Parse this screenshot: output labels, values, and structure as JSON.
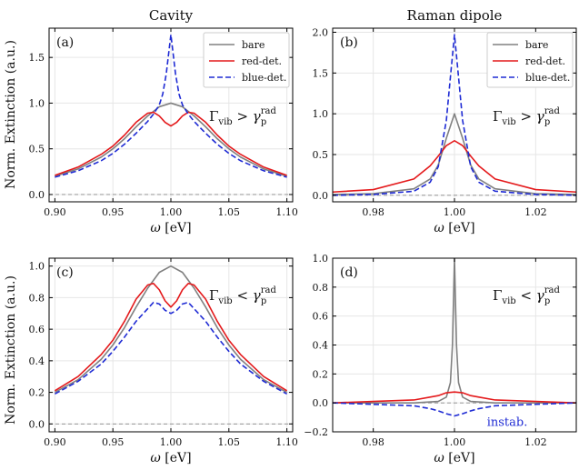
{
  "figure": {
    "column_titles": [
      "Cavity",
      "Raman dipole"
    ],
    "ylabel": "Norm. Extinction (a.u.)",
    "xlabel_symbol": "ω",
    "xlabel_unit": "[eV]"
  },
  "colors": {
    "bare": "#808080",
    "red": "#e41a1c",
    "blue": "#1f2bd4",
    "zero_line": "#888888",
    "grid": "#e6e6e6"
  },
  "chart_data": [
    {
      "type": "line",
      "panel": "(a)",
      "xlim": [
        0.895,
        1.105
      ],
      "ylim": [
        -0.08,
        1.82
      ],
      "xticks": [
        0.9,
        0.95,
        1.0,
        1.05,
        1.1
      ],
      "xtick_labels": [
        "0.90",
        "0.95",
        "1.00",
        "1.05",
        "1.10"
      ],
      "yticks": [
        0.0,
        0.5,
        1.0,
        1.5
      ],
      "ytick_labels": [
        "0.0",
        "0.5",
        "1.0",
        "1.5"
      ],
      "annotation": {
        "main": "Γ",
        "sub": "vib",
        "rel": ">",
        "gamma": "γ",
        "gsub": "p",
        "gsup": "rad"
      },
      "legend": {
        "position": "top-right",
        "entries": [
          "bare",
          "red-det.",
          "blue-det."
        ]
      },
      "grid": true,
      "zero_line": true,
      "series": [
        {
          "name": "bare",
          "color": "#808080",
          "dash": "solid",
          "x": [
            0.9,
            0.92,
            0.94,
            0.95,
            0.96,
            0.97,
            0.98,
            0.99,
            1.0,
            1.01,
            1.02,
            1.03,
            1.04,
            1.05,
            1.06,
            1.08,
            1.1
          ],
          "y": [
            0.2,
            0.28,
            0.41,
            0.5,
            0.61,
            0.74,
            0.86,
            0.96,
            1.0,
            0.96,
            0.86,
            0.74,
            0.61,
            0.5,
            0.41,
            0.28,
            0.2
          ]
        },
        {
          "name": "red-det.",
          "color": "#e41a1c",
          "dash": "solid",
          "x": [
            0.9,
            0.92,
            0.94,
            0.95,
            0.96,
            0.97,
            0.98,
            0.985,
            0.99,
            0.995,
            1.0,
            1.005,
            1.01,
            1.015,
            1.02,
            1.03,
            1.04,
            1.05,
            1.06,
            1.08,
            1.1
          ],
          "y": [
            0.21,
            0.3,
            0.44,
            0.53,
            0.65,
            0.79,
            0.89,
            0.9,
            0.86,
            0.79,
            0.75,
            0.79,
            0.86,
            0.9,
            0.89,
            0.79,
            0.65,
            0.53,
            0.44,
            0.3,
            0.21
          ]
        },
        {
          "name": "blue-det.",
          "color": "#1f2bd4",
          "dash": "dashed",
          "x": [
            0.9,
            0.92,
            0.94,
            0.95,
            0.96,
            0.97,
            0.98,
            0.985,
            0.99,
            0.993,
            0.996,
            1.0,
            1.004,
            1.007,
            1.01,
            1.015,
            1.02,
            1.03,
            1.04,
            1.05,
            1.06,
            1.08,
            1.1
          ],
          "y": [
            0.19,
            0.26,
            0.37,
            0.45,
            0.55,
            0.67,
            0.8,
            0.88,
            0.98,
            1.1,
            1.32,
            1.75,
            1.32,
            1.1,
            0.98,
            0.88,
            0.8,
            0.67,
            0.55,
            0.45,
            0.37,
            0.26,
            0.19
          ]
        }
      ]
    },
    {
      "type": "line",
      "panel": "(b)",
      "xlim": [
        0.97,
        1.03
      ],
      "ylim": [
        -0.08,
        2.05
      ],
      "xticks": [
        0.98,
        1.0,
        1.02
      ],
      "xtick_labels": [
        "0.98",
        "1.00",
        "1.02"
      ],
      "yticks": [
        0.0,
        0.5,
        1.0,
        1.5,
        2.0
      ],
      "ytick_labels": [
        "0.0",
        "0.5",
        "1.0",
        "1.5",
        "2.0"
      ],
      "annotation": {
        "main": "Γ",
        "sub": "vib",
        "rel": ">",
        "gamma": "γ",
        "gsub": "p",
        "gsup": "rad"
      },
      "legend": {
        "position": "top-right",
        "entries": [
          "bare",
          "red-det.",
          "blue-det."
        ]
      },
      "grid": true,
      "zero_line": true,
      "series": [
        {
          "name": "bare",
          "color": "#808080",
          "dash": "solid",
          "x": [
            0.97,
            0.98,
            0.99,
            0.994,
            0.996,
            0.998,
            1.0,
            1.002,
            1.004,
            1.006,
            1.01,
            1.02,
            1.03
          ],
          "y": [
            0.01,
            0.02,
            0.08,
            0.2,
            0.37,
            0.7,
            1.0,
            0.7,
            0.37,
            0.2,
            0.08,
            0.02,
            0.01
          ]
        },
        {
          "name": "red-det.",
          "color": "#e41a1c",
          "dash": "solid",
          "x": [
            0.97,
            0.98,
            0.99,
            0.994,
            0.996,
            0.998,
            1.0,
            1.002,
            1.004,
            1.006,
            1.01,
            1.02,
            1.03
          ],
          "y": [
            0.04,
            0.07,
            0.2,
            0.36,
            0.48,
            0.61,
            0.67,
            0.61,
            0.48,
            0.36,
            0.2,
            0.07,
            0.04
          ]
        },
        {
          "name": "blue-det.",
          "color": "#1f2bd4",
          "dash": "dashed",
          "x": [
            0.97,
            0.98,
            0.99,
            0.994,
            0.996,
            0.998,
            0.999,
            1.0,
            1.001,
            1.002,
            1.004,
            1.006,
            1.01,
            1.02,
            1.03
          ],
          "y": [
            0.0,
            0.01,
            0.05,
            0.16,
            0.35,
            0.92,
            1.45,
            1.97,
            1.45,
            0.92,
            0.35,
            0.16,
            0.05,
            0.01,
            0.0
          ]
        }
      ]
    },
    {
      "type": "line",
      "panel": "(c)",
      "xlim": [
        0.895,
        1.105
      ],
      "ylim": [
        -0.05,
        1.05
      ],
      "xticks": [
        0.9,
        0.95,
        1.0,
        1.05,
        1.1
      ],
      "xtick_labels": [
        "0.90",
        "0.95",
        "1.00",
        "1.05",
        "1.10"
      ],
      "yticks": [
        0.0,
        0.2,
        0.4,
        0.6,
        0.8,
        1.0
      ],
      "ytick_labels": [
        "0.0",
        "0.2",
        "0.4",
        "0.6",
        "0.8",
        "1.0"
      ],
      "annotation": {
        "main": "Γ",
        "sub": "vib",
        "rel": "<",
        "gamma": "γ",
        "gsub": "p",
        "gsup": "rad"
      },
      "grid": true,
      "zero_line": true,
      "series": [
        {
          "name": "bare",
          "color": "#808080",
          "dash": "solid",
          "x": [
            0.9,
            0.92,
            0.94,
            0.95,
            0.96,
            0.97,
            0.98,
            0.99,
            1.0,
            1.01,
            1.02,
            1.03,
            1.04,
            1.05,
            1.06,
            1.08,
            1.1
          ],
          "y": [
            0.2,
            0.28,
            0.41,
            0.5,
            0.61,
            0.74,
            0.86,
            0.96,
            1.0,
            0.96,
            0.86,
            0.74,
            0.61,
            0.5,
            0.41,
            0.28,
            0.2
          ]
        },
        {
          "name": "red-det.",
          "color": "#e41a1c",
          "dash": "solid",
          "x": [
            0.9,
            0.92,
            0.94,
            0.95,
            0.96,
            0.97,
            0.98,
            0.985,
            0.99,
            0.995,
            1.0,
            1.005,
            1.01,
            1.015,
            1.02,
            1.03,
            1.04,
            1.05,
            1.06,
            1.08,
            1.1
          ],
          "y": [
            0.21,
            0.3,
            0.44,
            0.53,
            0.65,
            0.79,
            0.88,
            0.89,
            0.85,
            0.78,
            0.74,
            0.78,
            0.85,
            0.89,
            0.88,
            0.79,
            0.65,
            0.53,
            0.44,
            0.3,
            0.21
          ]
        },
        {
          "name": "blue-det.",
          "color": "#1f2bd4",
          "dash": "dashed",
          "x": [
            0.9,
            0.92,
            0.94,
            0.95,
            0.96,
            0.97,
            0.98,
            0.985,
            0.99,
            0.995,
            1.0,
            1.005,
            1.01,
            1.015,
            1.02,
            1.03,
            1.04,
            1.05,
            1.06,
            1.08,
            1.1
          ],
          "y": [
            0.19,
            0.27,
            0.38,
            0.46,
            0.55,
            0.65,
            0.73,
            0.77,
            0.76,
            0.72,
            0.7,
            0.72,
            0.76,
            0.77,
            0.73,
            0.65,
            0.55,
            0.46,
            0.38,
            0.27,
            0.19
          ]
        }
      ]
    },
    {
      "type": "line",
      "panel": "(d)",
      "xlim": [
        0.97,
        1.03
      ],
      "ylim": [
        -0.2,
        1.0
      ],
      "xticks": [
        0.98,
        1.0,
        1.02
      ],
      "xtick_labels": [
        "0.98",
        "1.00",
        "1.02"
      ],
      "yticks": [
        -0.2,
        0.0,
        0.2,
        0.4,
        0.6,
        0.8,
        1.0
      ],
      "ytick_labels": [
        "−0.2",
        "0.0",
        "0.2",
        "0.4",
        "0.6",
        "0.8",
        "1.0"
      ],
      "annotation": {
        "main": "Γ",
        "sub": "vib",
        "rel": "<",
        "gamma": "γ",
        "gsub": "p",
        "gsup": "rad"
      },
      "note": "instab.",
      "grid": true,
      "zero_line": true,
      "series": [
        {
          "name": "bare",
          "color": "#808080",
          "dash": "solid",
          "x": [
            0.97,
            0.99,
            0.996,
            0.998,
            0.999,
            0.9995,
            1.0,
            1.0005,
            1.001,
            1.002,
            1.004,
            1.01,
            1.03
          ],
          "y": [
            0.0,
            0.0,
            0.01,
            0.04,
            0.14,
            0.4,
            1.0,
            0.4,
            0.14,
            0.04,
            0.01,
            0.0,
            0.0
          ]
        },
        {
          "name": "red-det.",
          "color": "#e41a1c",
          "dash": "solid",
          "x": [
            0.97,
            0.98,
            0.99,
            0.994,
            0.996,
            0.998,
            1.0,
            1.002,
            1.004,
            1.006,
            1.01,
            1.02,
            1.03
          ],
          "y": [
            0.0,
            0.01,
            0.02,
            0.04,
            0.05,
            0.07,
            0.075,
            0.07,
            0.05,
            0.04,
            0.02,
            0.01,
            0.0
          ]
        },
        {
          "name": "blue-det.",
          "color": "#1f2bd4",
          "dash": "dashed",
          "x": [
            0.97,
            0.98,
            0.99,
            0.994,
            0.996,
            0.998,
            1.0,
            1.002,
            1.004,
            1.006,
            1.01,
            1.02,
            1.03
          ],
          "y": [
            0.0,
            -0.01,
            -0.02,
            -0.04,
            -0.055,
            -0.075,
            -0.09,
            -0.075,
            -0.055,
            -0.04,
            -0.02,
            -0.01,
            0.0
          ]
        }
      ]
    }
  ]
}
